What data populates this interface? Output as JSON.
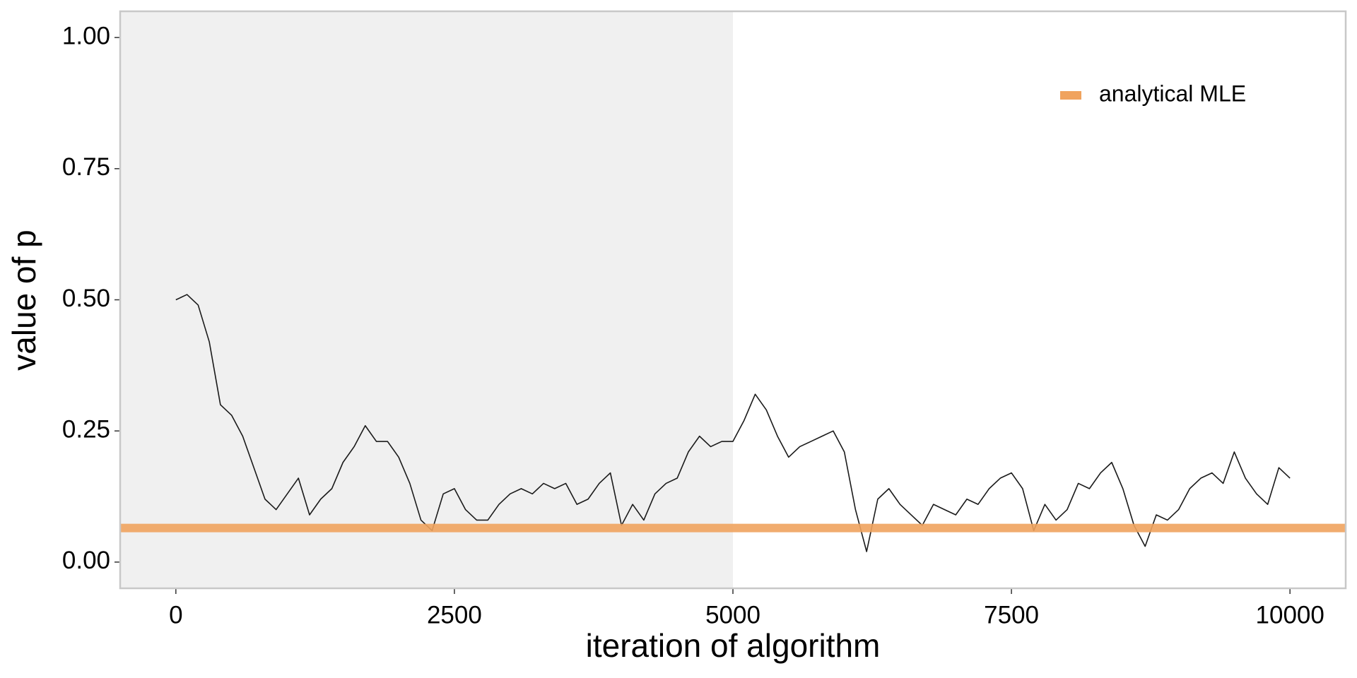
{
  "chart_data": {
    "type": "line",
    "x_label": "iteration of algorithm",
    "y_label": "value of p",
    "x": [
      0,
      100,
      200,
      300,
      400,
      500,
      600,
      700,
      800,
      900,
      1000,
      1100,
      1200,
      1300,
      1400,
      1500,
      1600,
      1700,
      1800,
      1900,
      2000,
      2100,
      2200,
      2300,
      2400,
      2500,
      2600,
      2700,
      2800,
      2900,
      3000,
      3100,
      3200,
      3300,
      3400,
      3500,
      3600,
      3700,
      3800,
      3900,
      4000,
      4100,
      4200,
      4300,
      4400,
      4500,
      4600,
      4700,
      4800,
      4900,
      5000,
      5100,
      5200,
      5300,
      5400,
      5500,
      5600,
      5700,
      5800,
      5900,
      6000,
      6100,
      6200,
      6300,
      6400,
      6500,
      6600,
      6700,
      6800,
      6900,
      7000,
      7100,
      7200,
      7300,
      7400,
      7500,
      7600,
      7700,
      7800,
      7900,
      8000,
      8100,
      8200,
      8300,
      8400,
      8500,
      8600,
      8700,
      8800,
      8900,
      9000,
      9100,
      9200,
      9300,
      9400,
      9500,
      9600,
      9700,
      9800,
      9900,
      10000
    ],
    "series": [
      {
        "color": "#1a1a1a",
        "values": [
          0.5,
          0.51,
          0.49,
          0.42,
          0.3,
          0.28,
          0.24,
          0.18,
          0.12,
          0.1,
          0.13,
          0.16,
          0.09,
          0.12,
          0.14,
          0.19,
          0.22,
          0.26,
          0.23,
          0.23,
          0.2,
          0.15,
          0.08,
          0.06,
          0.13,
          0.14,
          0.1,
          0.08,
          0.08,
          0.11,
          0.13,
          0.14,
          0.13,
          0.15,
          0.14,
          0.15,
          0.11,
          0.12,
          0.15,
          0.17,
          0.07,
          0.11,
          0.08,
          0.13,
          0.15,
          0.16,
          0.21,
          0.24,
          0.22,
          0.23,
          0.23,
          0.27,
          0.32,
          0.29,
          0.24,
          0.2,
          0.22,
          0.23,
          0.24,
          0.25,
          0.21,
          0.1,
          0.02,
          0.12,
          0.14,
          0.11,
          0.09,
          0.07,
          0.11,
          0.1,
          0.09,
          0.12,
          0.11,
          0.14,
          0.16,
          0.17,
          0.14,
          0.06,
          0.11,
          0.08,
          0.1,
          0.15,
          0.14,
          0.17,
          0.19,
          0.14,
          0.07,
          0.03,
          0.09,
          0.08,
          0.1,
          0.14,
          0.16,
          0.17,
          0.15,
          0.21,
          0.16,
          0.13,
          0.11,
          0.18,
          0.16
        ]
      }
    ],
    "reference_lines": [
      {
        "name": "analytical MLE",
        "value": 0.065,
        "color": "#f0a35e"
      }
    ],
    "shade_xmax": 5000,
    "shade_color": "#f0f0f0",
    "xlim": [
      -500,
      10500
    ],
    "ylim": [
      -0.05,
      1.05
    ],
    "xticks": [
      0,
      2500,
      5000,
      7500,
      10000
    ],
    "yticks": [
      {
        "value": 0,
        "label": "0.00"
      },
      {
        "value": 0.25,
        "label": "0.25"
      },
      {
        "value": 0.5,
        "label": "0.50"
      },
      {
        "value": 0.75,
        "label": "0.75"
      },
      {
        "value": 1,
        "label": "1.00"
      }
    ],
    "legend": "top-right"
  }
}
